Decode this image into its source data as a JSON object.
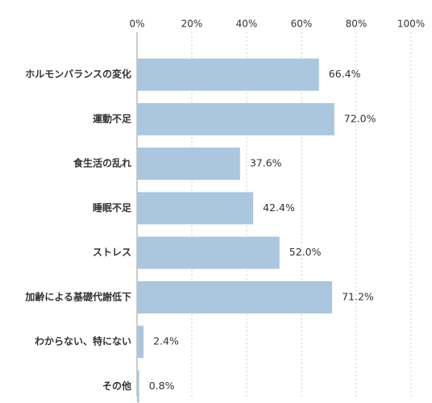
{
  "chart_data": {
    "type": "hbar",
    "categories": [
      "ホルモンバランスの変化",
      "運動不足",
      "食生活の乱れ",
      "睡眠不足",
      "ストレス",
      "加齢による基礎代謝低下",
      "わからない、特にない",
      "その他"
    ],
    "values": [
      66.4,
      72.0,
      37.6,
      42.4,
      52.0,
      71.2,
      2.4,
      0.8
    ],
    "value_labels": [
      "66.4%",
      "72.0%",
      "37.6%",
      "42.4%",
      "52.0%",
      "71.2%",
      "2.4%",
      "0.8%"
    ],
    "color": "#abc7df",
    "xlim": [
      0,
      100
    ],
    "xticks": [
      {
        "value": 0,
        "label": "0%"
      },
      {
        "value": 20,
        "label": "20%"
      },
      {
        "value": 40,
        "label": "40%"
      },
      {
        "value": 60,
        "label": "60%"
      },
      {
        "value": 80,
        "label": "80%"
      },
      {
        "value": 100,
        "label": "100%"
      }
    ],
    "grid": true
  }
}
